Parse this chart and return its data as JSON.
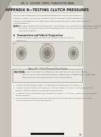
{
  "bg_color": "#e8e5e0",
  "page_bg": "#c8c4bc",
  "content_bg": "#f2efe9",
  "header_bar_color": "#b8b4ac",
  "header_text": "WTEC II  ELECTRONIC CONTROLS TROUBLESHOOTING MANUAL",
  "title": "APPENDIX B—TESTING CLUTCH PRESSURES",
  "body_text_lines": [
    "Tests will help to determine if a transmission malfunction is due to a mechanical or",
    "hydraulic problem. You can also use these tests to determine if clutch adjustment is",
    "needed by comparing recorded data against specifications provided. These instructions are",
    "general guidelines."
  ],
  "note_label": "NOTE:",
  "note_lines": [
    "Determine whether there are diagnostic codes set which are causing the transmission to shift into",
    "safe mode. Proceed to make functional preparations for recording clutch pressures after codes",
    "have been evaluated."
  ],
  "section_label": "A.   Transmission and Vehicle Preparation",
  "step1a": "1.   Remove the plugs from the pressure test locations (refer to Chapter 5,",
  "step1b": "      Figure B-2).",
  "fig_caption": "Figure B-1.  Clutch Pressure Check Points",
  "caution_label": "CAUTION",
  "caution_lines": [
    "The caps that the hydraulic fittings have the same thread as the plugs removed",
    "(7/16-20 SAE-45); also please note that these fittings must be straight thread. Putting pipe",
    "tapers in the line will result in damage to the control module."
  ],
  "numbered_items": [
    "1.   Install hydraulic fittings suitable for attaching pressure gauges or transducers.",
    "2.   Connect pressure gauges or transducers. Pressure gauge set J 34811-A is available for this",
    "     purpose. Refer to Table B-1 for pressure levels expected.",
    "3.   Determine that engine speed can be monitored (Allison DOC™ for PC-Service Tool may be used",
    "     for this purpose).",
    "4.   Be sure that transmission sump fluid temperature can be monitored (Allison DOC™ for PC-",
    "     Service Tool may be used for this purpose)."
  ],
  "page_number": "B-1",
  "fold_color": "#a8a49c",
  "fold_dark": "#888480",
  "diag_bg": "#dedad4",
  "diag_border": "#999990",
  "caution_bg": "#edeae4",
  "caution_border": "#888880",
  "text_dark": "#1a1a1a",
  "text_mid": "#333333",
  "text_light": "#555555"
}
